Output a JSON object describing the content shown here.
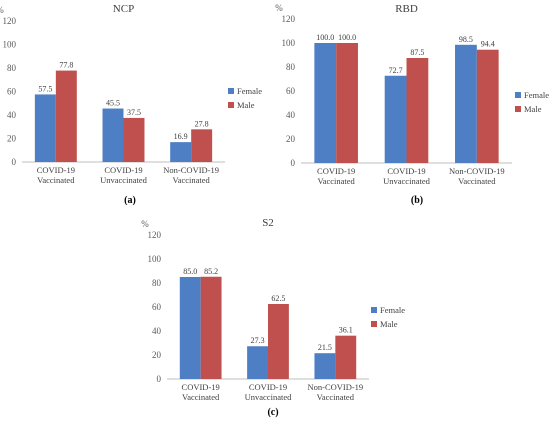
{
  "colors": {
    "female": "#4e7fc4",
    "male": "#c0504d",
    "grid": "#d9d9d9",
    "axis": "#bfbfbf"
  },
  "chart_data": [
    {
      "type": "bar",
      "title": "NCP",
      "ylabel": "%",
      "ylim": [
        0,
        120
      ],
      "yticks": [
        0,
        20,
        40,
        60,
        80,
        100,
        120
      ],
      "categories": [
        [
          "COVID-19",
          "Vaccinated"
        ],
        [
          "COVID-19",
          "Unvaccinated"
        ],
        [
          "Non-COVID-19",
          "Vaccinated"
        ]
      ],
      "series": [
        {
          "name": "Female",
          "values": [
            57.5,
            45.5,
            16.9
          ]
        },
        {
          "name": "Male",
          "values": [
            77.8,
            37.5,
            27.8
          ]
        }
      ],
      "value_labels": [
        [
          "57.5",
          "45.5",
          "16.9"
        ],
        [
          "77.8",
          "37.5",
          "27.8"
        ]
      ],
      "legend": "right",
      "grid": false,
      "caption": "(a)"
    },
    {
      "type": "bar",
      "title": "RBD",
      "ylabel": "%",
      "ylim": [
        0,
        120
      ],
      "yticks": [
        0,
        20,
        40,
        60,
        80,
        100,
        120
      ],
      "categories": [
        [
          "COVID-19",
          "Vaccinated"
        ],
        [
          "COVID-19",
          "Unvaccinated"
        ],
        [
          "Non-COVID-19",
          "Vaccinated"
        ]
      ],
      "series": [
        {
          "name": "Female",
          "values": [
            100.0,
            72.7,
            98.5
          ]
        },
        {
          "name": "Male",
          "values": [
            100.0,
            87.5,
            94.4
          ]
        }
      ],
      "value_labels": [
        [
          "100.0",
          "72.7",
          "98.5"
        ],
        [
          "100.0",
          "87.5",
          "94.4"
        ]
      ],
      "legend": "right",
      "grid": false,
      "caption": "(b)"
    },
    {
      "type": "bar",
      "title": "S2",
      "ylabel": "%",
      "ylim": [
        0,
        120
      ],
      "yticks": [
        0,
        20,
        40,
        60,
        80,
        100,
        120
      ],
      "categories": [
        [
          "COVID-19",
          "Vaccinated"
        ],
        [
          "COVID-19",
          "Unvaccinated"
        ],
        [
          "Non-COVID-19",
          "Vaccinated"
        ]
      ],
      "series": [
        {
          "name": "Female",
          "values": [
            85.0,
            27.3,
            21.5
          ]
        },
        {
          "name": "Male",
          "values": [
            85.2,
            62.5,
            36.1
          ]
        }
      ],
      "value_labels": [
        [
          "85.0",
          "27.3",
          "21.5"
        ],
        [
          "85.2",
          "62.5",
          "36.1"
        ]
      ],
      "legend": "right",
      "grid": false,
      "caption": "(c)"
    }
  ]
}
